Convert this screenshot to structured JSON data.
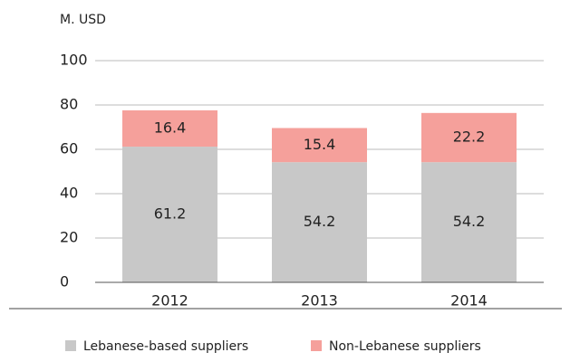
{
  "chart_data": {
    "type": "bar",
    "stacked": true,
    "ylabel": "M. USD",
    "categories": [
      "2012",
      "2013",
      "2014"
    ],
    "series": [
      {
        "name": "Lebanese-based suppliers",
        "color": "#c8c8c8",
        "values": [
          61.2,
          54.2,
          54.2
        ]
      },
      {
        "name": "Non-Lebanese suppliers",
        "color": "#f5a09b",
        "values": [
          16.4,
          15.4,
          22.2
        ]
      }
    ],
    "ylim": [
      0,
      100
    ],
    "yticks": [
      0,
      20,
      40,
      60,
      80,
      100
    ],
    "grid": true
  }
}
